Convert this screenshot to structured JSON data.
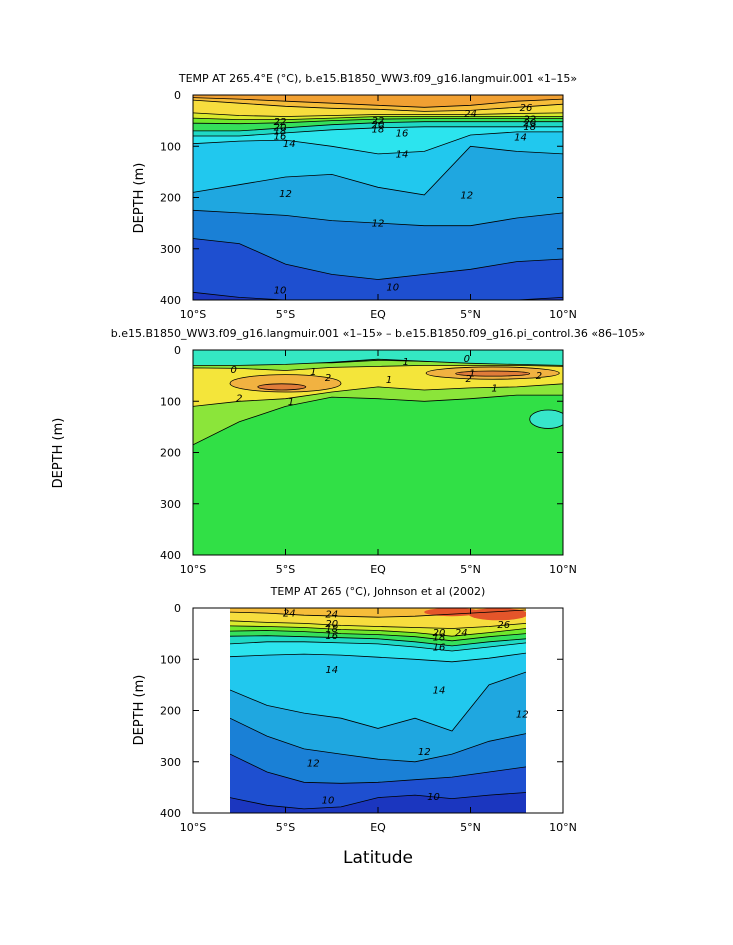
{
  "chart_data": [
    {
      "type": "contour",
      "title": "TEMP AT 265.4°E (°C), b.e15.B1850_WW3.f09_g16.langmuir.001 «1–15»",
      "xlabel": "",
      "ylabel": "DEPTH (m)",
      "xlim": [
        -10,
        10
      ],
      "ylim": [
        0,
        400
      ],
      "xticks": [
        {
          "v": -10,
          "label": "10°S"
        },
        {
          "v": -5,
          "label": "5°S"
        },
        {
          "v": 0,
          "label": "EQ"
        },
        {
          "v": 5,
          "label": "5°N"
        },
        {
          "v": 10,
          "label": "10°N"
        }
      ],
      "yticks": [
        0,
        100,
        200,
        300,
        400
      ],
      "data_xrange": [
        -10,
        10
      ],
      "x": [
        -10,
        -7.5,
        -5,
        -2.5,
        0,
        2.5,
        5,
        7.5,
        10
      ],
      "isotherms": [
        {
          "level": 26,
          "depths": [
            5,
            8,
            12,
            16,
            20,
            24,
            20,
            12,
            8
          ],
          "color": "#f1a032"
        },
        {
          "level": 24,
          "depths": [
            10,
            16,
            22,
            26,
            28,
            32,
            30,
            24,
            18
          ],
          "color": "#f6bd3a"
        },
        {
          "level": 22,
          "depths": [
            35,
            40,
            42,
            40,
            38,
            38,
            38,
            36,
            35
          ],
          "color": "#f7dd3e"
        },
        {
          "level": 20,
          "depths": [
            45,
            48,
            48,
            45,
            42,
            42,
            42,
            42,
            42
          ],
          "color": "#d9ea2e"
        },
        {
          "level": 18,
          "depths": [
            55,
            56,
            54,
            50,
            47,
            46,
            46,
            46,
            46
          ],
          "color": "#6fe82c"
        },
        {
          "level": 16,
          "depths": [
            70,
            70,
            64,
            58,
            54,
            52,
            52,
            52,
            52
          ],
          "color": "#35e05b"
        },
        {
          "level": 15,
          "depths": [
            80,
            80,
            74,
            68,
            64,
            62,
            62,
            62,
            62
          ],
          "color": "#1fd9c4"
        },
        {
          "level": 14,
          "depths": [
            95,
            90,
            88,
            100,
            115,
            110,
            78,
            72,
            72
          ],
          "color": "#2ce4ee"
        },
        {
          "level": 12,
          "depths": [
            190,
            175,
            160,
            155,
            180,
            195,
            100,
            110,
            115
          ],
          "color": "#21c8ee"
        },
        {
          "level": 11,
          "depths": [
            225,
            230,
            235,
            245,
            250,
            255,
            255,
            240,
            230
          ],
          "color": "#1fa7e0"
        },
        {
          "level": 10,
          "depths": [
            280,
            290,
            330,
            350,
            360,
            350,
            340,
            325,
            320
          ],
          "color": "#1a80d6"
        },
        {
          "level": 9,
          "depths": [
            385,
            395,
            400,
            400,
            400,
            400,
            400,
            400,
            395
          ],
          "color": "#1e4fd0"
        }
      ],
      "bottom_color": "#1b36bf",
      "contour_labels": [
        {
          "x": 8,
          "y": 24,
          "text": "26"
        },
        {
          "x": 5,
          "y": 36,
          "text": "24"
        },
        {
          "x": 8.2,
          "y": 47,
          "text": "22"
        },
        {
          "x": -5.3,
          "y": 52,
          "text": "22"
        },
        {
          "x": 0,
          "y": 50,
          "text": "22"
        },
        {
          "x": 8.2,
          "y": 54,
          "text": "20"
        },
        {
          "x": -5.3,
          "y": 62,
          "text": "20"
        },
        {
          "x": 0,
          "y": 58,
          "text": "20"
        },
        {
          "x": 8.2,
          "y": 61,
          "text": "18"
        },
        {
          "x": -5.3,
          "y": 70,
          "text": "18"
        },
        {
          "x": 0,
          "y": 66,
          "text": "18"
        },
        {
          "x": 1.3,
          "y": 74,
          "text": "16"
        },
        {
          "x": -5.3,
          "y": 80,
          "text": "16"
        },
        {
          "x": 7.7,
          "y": 82,
          "text": "14"
        },
        {
          "x": -4.8,
          "y": 95,
          "text": "14"
        },
        {
          "x": 1.3,
          "y": 115,
          "text": "14"
        },
        {
          "x": -5,
          "y": 192,
          "text": "12"
        },
        {
          "x": 0,
          "y": 250,
          "text": "12"
        },
        {
          "x": 4.8,
          "y": 195,
          "text": "12"
        },
        {
          "x": -5.3,
          "y": 380,
          "text": "10"
        },
        {
          "x": 0.8,
          "y": 375,
          "text": "10"
        }
      ]
    },
    {
      "type": "contour",
      "title": "b.e15.B1850_WW3.f09_g16.langmuir.001 «1–15» – b.e15.B1850.f09_g16.pi_control.36 «86–105»",
      "xlabel": "",
      "ylabel": "DEPTH (m)",
      "xlim": [
        -10,
        10
      ],
      "ylim": [
        0,
        400
      ],
      "xticks": [
        {
          "v": -10,
          "label": "10°S"
        },
        {
          "v": -5,
          "label": "5°S"
        },
        {
          "v": 0,
          "label": "EQ"
        },
        {
          "v": 5,
          "label": "5°N"
        },
        {
          "v": 10,
          "label": "10°N"
        }
      ],
      "yticks": [
        0,
        100,
        200,
        300,
        400
      ],
      "data_xrange": [
        -10,
        10
      ],
      "background": "#31e046",
      "bands": [
        {
          "kind": "band",
          "color": "#8be53a",
          "x": [
            -10,
            -7.5,
            -5,
            -2.5,
            0,
            2.5,
            5,
            7.5,
            10
          ],
          "top": [
            25,
            25,
            25,
            25,
            20,
            22,
            24,
            24,
            24
          ],
          "bottom": [
            185,
            140,
            110,
            92,
            95,
            100,
            95,
            88,
            88
          ]
        },
        {
          "kind": "band",
          "color": "#f4e53a",
          "x": [
            -10,
            -7.5,
            -5,
            -2.5,
            0,
            2.5,
            5,
            7.5,
            10
          ],
          "top": [
            35,
            36,
            40,
            34,
            32,
            30,
            30,
            30,
            32
          ],
          "bottom": [
            110,
            100,
            95,
            82,
            72,
            78,
            74,
            72,
            66
          ]
        },
        {
          "kind": "band",
          "color": "#34e8c3",
          "x": [
            -10,
            -7.5,
            -5,
            -2.5,
            0,
            2.5,
            5,
            7.5,
            10
          ],
          "top": [
            0,
            0,
            0,
            0,
            0,
            0,
            0,
            0,
            0
          ],
          "bottom": [
            30,
            30,
            28,
            24,
            18,
            22,
            26,
            28,
            30
          ]
        },
        {
          "kind": "ellipse",
          "color": "#f1b241",
          "cx": -5,
          "cy": 65,
          "rx": 3,
          "ry": 17
        },
        {
          "kind": "ellipse",
          "color": "#f1b241",
          "cx": 6.2,
          "cy": 45,
          "rx": 3.6,
          "ry": 12
        },
        {
          "kind": "ellipse",
          "color": "#e07c3a",
          "cx": -5.2,
          "cy": 72,
          "rx": 1.3,
          "ry": 6
        },
        {
          "kind": "ellipse",
          "color": "#e07c3a",
          "cx": 6.2,
          "cy": 46,
          "rx": 2,
          "ry": 5
        },
        {
          "kind": "ellipse",
          "color": "#37e6ca",
          "cx": 9.2,
          "cy": 135,
          "rx": 1,
          "ry": 18
        }
      ],
      "contour_labels": [
        {
          "x": -7.8,
          "y": 38,
          "text": "0"
        },
        {
          "x": -3.5,
          "y": 42,
          "text": "1"
        },
        {
          "x": -2.7,
          "y": 54,
          "text": "2"
        },
        {
          "x": -7.5,
          "y": 94,
          "text": "2"
        },
        {
          "x": -4.7,
          "y": 100,
          "text": "1"
        },
        {
          "x": 1.5,
          "y": 22,
          "text": "1"
        },
        {
          "x": 0.6,
          "y": 58,
          "text": "1"
        },
        {
          "x": 4.8,
          "y": 17,
          "text": "0"
        },
        {
          "x": 5.1,
          "y": 45,
          "text": "1"
        },
        {
          "x": 4.9,
          "y": 56,
          "text": "2"
        },
        {
          "x": 8.7,
          "y": 50,
          "text": "2"
        },
        {
          "x": 6.3,
          "y": 74,
          "text": "1"
        }
      ]
    },
    {
      "type": "contour",
      "title": "TEMP AT 265 (°C), Johnson et al (2002)",
      "xlabel": "Latitude",
      "ylabel": "DEPTH (m)",
      "xlim": [
        -10,
        10
      ],
      "ylim": [
        0,
        400
      ],
      "xticks": [
        {
          "v": -10,
          "label": "10°S"
        },
        {
          "v": -5,
          "label": "5°S"
        },
        {
          "v": 0,
          "label": "EQ"
        },
        {
          "v": 5,
          "label": "5°N"
        },
        {
          "v": 10,
          "label": "10°N"
        }
      ],
      "yticks": [
        0,
        100,
        200,
        300,
        400
      ],
      "data_xrange": [
        -8,
        8
      ],
      "x": [
        -8,
        -6,
        -4,
        -2,
        0,
        2,
        4,
        6,
        8
      ],
      "isotherms": [
        {
          "level": 26,
          "depths": [
            0,
            0,
            0,
            0,
            0,
            0,
            0,
            0,
            0
          ],
          "color": "#f1a032"
        },
        {
          "level": 24,
          "depths": [
            8,
            10,
            14,
            16,
            18,
            16,
            12,
            8,
            4
          ],
          "color": "#f6bd3a"
        },
        {
          "level": 22,
          "depths": [
            25,
            28,
            30,
            34,
            36,
            38,
            40,
            36,
            30
          ],
          "color": "#f7dd3e"
        },
        {
          "level": 20,
          "depths": [
            35,
            36,
            38,
            42,
            44,
            48,
            55,
            48,
            40
          ],
          "color": "#d9ea2e"
        },
        {
          "level": 18,
          "depths": [
            45,
            44,
            46,
            50,
            52,
            56,
            64,
            56,
            50
          ],
          "color": "#6fe82c"
        },
        {
          "level": 16,
          "depths": [
            55,
            54,
            56,
            58,
            60,
            66,
            74,
            66,
            60
          ],
          "color": "#35e05b"
        },
        {
          "level": 15,
          "depths": [
            70,
            66,
            66,
            68,
            70,
            76,
            84,
            76,
            68
          ],
          "color": "#1fd9c4"
        },
        {
          "level": 14,
          "depths": [
            95,
            92,
            90,
            92,
            96,
            100,
            105,
            98,
            88
          ],
          "color": "#2ce4ee"
        },
        {
          "level": 12,
          "depths": [
            160,
            190,
            205,
            215,
            235,
            215,
            240,
            150,
            125
          ],
          "color": "#21c8ee"
        },
        {
          "level": 11,
          "depths": [
            215,
            250,
            275,
            285,
            295,
            300,
            285,
            260,
            245
          ],
          "color": "#1fa7e0"
        },
        {
          "level": 10,
          "depths": [
            285,
            320,
            340,
            342,
            340,
            335,
            330,
            320,
            310
          ],
          "color": "#1a80d6"
        },
        {
          "level": 9,
          "depths": [
            370,
            385,
            392,
            388,
            370,
            365,
            372,
            365,
            360
          ],
          "color": "#1e4fd0"
        }
      ],
      "bottom_color": "#1b36bf",
      "hot_patches": [
        {
          "cx": 6.5,
          "cy": 12,
          "rx": 1.6,
          "ry": 12,
          "color": "#e4552a"
        },
        {
          "cx": 4,
          "cy": 8,
          "rx": 1.5,
          "ry": 8,
          "color": "#e4552a"
        }
      ],
      "contour_labels": [
        {
          "x": -4.8,
          "y": 10,
          "text": "24"
        },
        {
          "x": -2.5,
          "y": 12,
          "text": "24"
        },
        {
          "x": -2.5,
          "y": 30,
          "text": "20"
        },
        {
          "x": -2.5,
          "y": 40,
          "text": "18"
        },
        {
          "x": -2.5,
          "y": 54,
          "text": "16"
        },
        {
          "x": 3.3,
          "y": 48,
          "text": "20"
        },
        {
          "x": 3.3,
          "y": 57,
          "text": "18"
        },
        {
          "x": 3.3,
          "y": 76,
          "text": "16"
        },
        {
          "x": 4.5,
          "y": 48,
          "text": "24"
        },
        {
          "x": 6.8,
          "y": 32,
          "text": "26"
        },
        {
          "x": -2.5,
          "y": 120,
          "text": "14"
        },
        {
          "x": 3.3,
          "y": 160,
          "text": "14"
        },
        {
          "x": 7.8,
          "y": 207,
          "text": "12"
        },
        {
          "x": 2.5,
          "y": 280,
          "text": "12"
        },
        {
          "x": -3.5,
          "y": 302,
          "text": "12"
        },
        {
          "x": -2.7,
          "y": 375,
          "text": "10"
        },
        {
          "x": 3,
          "y": 368,
          "text": "10"
        }
      ]
    }
  ]
}
